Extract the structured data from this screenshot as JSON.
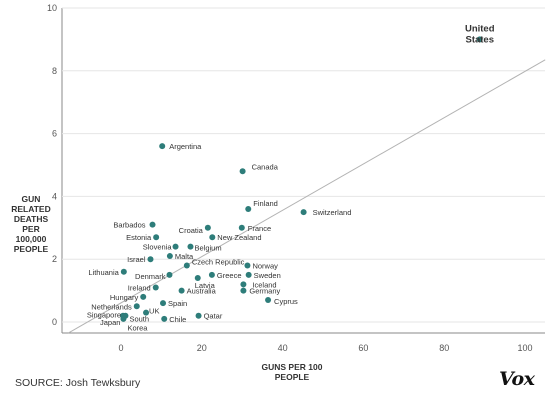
{
  "chart_data": {
    "type": "scatter",
    "xlabel": [
      "GUNS PER 100",
      "PEOPLE"
    ],
    "ylabel": [
      "GUN",
      "RELATED",
      "DEATHS",
      "PER",
      "100,000",
      "PEOPLE"
    ],
    "xlim": [
      -13,
      105
    ],
    "ylim": [
      -0.35,
      10
    ],
    "x_ticks": [
      0,
      20,
      40,
      60,
      80,
      100
    ],
    "y_ticks": [
      0,
      2,
      4,
      6,
      8,
      10
    ],
    "grid": "horizontal",
    "reference_line": {
      "from": [
        -13,
        -0.35
      ],
      "to": [
        105,
        8.35
      ]
    },
    "point_color": "#2e7d7a",
    "line_color": "#b3b3b3",
    "points": [
      {
        "label": "United States",
        "x": 88.8,
        "y": 9.0,
        "emphasis": true
      },
      {
        "label": "Argentina",
        "x": 10.2,
        "y": 5.6
      },
      {
        "label": "Canada",
        "x": 30.1,
        "y": 4.8
      },
      {
        "label": "Finland",
        "x": 31.5,
        "y": 3.6
      },
      {
        "label": "Switzerland",
        "x": 45.2,
        "y": 3.5
      },
      {
        "label": "Barbados",
        "x": 7.8,
        "y": 3.1
      },
      {
        "label": "Croatia",
        "x": 21.5,
        "y": 3.0
      },
      {
        "label": "France",
        "x": 29.9,
        "y": 3.0
      },
      {
        "label": "Estonia",
        "x": 8.7,
        "y": 2.7
      },
      {
        "label": "New Zealand",
        "x": 22.6,
        "y": 2.7
      },
      {
        "label": "Slovenia",
        "x": 13.5,
        "y": 2.4
      },
      {
        "label": "Belgium",
        "x": 17.2,
        "y": 2.4
      },
      {
        "label": "Malta",
        "x": 12.1,
        "y": 2.1
      },
      {
        "label": "Israel",
        "x": 7.3,
        "y": 2.0
      },
      {
        "label": "Czech Republic",
        "x": 16.3,
        "y": 1.8
      },
      {
        "label": "Norway",
        "x": 31.3,
        "y": 1.8
      },
      {
        "label": "Lithuania",
        "x": 0.7,
        "y": 1.6
      },
      {
        "label": "Denmark",
        "x": 12.0,
        "y": 1.5
      },
      {
        "label": "Greece",
        "x": 22.5,
        "y": 1.5
      },
      {
        "label": "Sweden",
        "x": 31.6,
        "y": 1.5
      },
      {
        "label": "Latvia",
        "x": 19.0,
        "y": 1.4
      },
      {
        "label": "Iceland",
        "x": 30.3,
        "y": 1.2
      },
      {
        "label": "Ireland",
        "x": 8.6,
        "y": 1.1
      },
      {
        "label": "Australia",
        "x": 15.0,
        "y": 1.0
      },
      {
        "label": "Germany",
        "x": 30.3,
        "y": 1.0
      },
      {
        "label": "Hungary",
        "x": 5.5,
        "y": 0.8
      },
      {
        "label": "Cyprus",
        "x": 36.4,
        "y": 0.7
      },
      {
        "label": "Spain",
        "x": 10.4,
        "y": 0.6
      },
      {
        "label": "Netherlands",
        "x": 3.9,
        "y": 0.5
      },
      {
        "label": "UK",
        "x": 6.2,
        "y": 0.3
      },
      {
        "label": "Singapore",
        "x": 0.5,
        "y": 0.2
      },
      {
        "label": "South Korea",
        "x": 1.1,
        "y": 0.2
      },
      {
        "label": "Japan",
        "x": 0.6,
        "y": 0.1
      },
      {
        "label": "Chile",
        "x": 10.7,
        "y": 0.1
      },
      {
        "label": "Qatar",
        "x": 19.2,
        "y": 0.2
      }
    ]
  },
  "source": "SOURCE: Josh Tewksbury",
  "logo": "Vox"
}
